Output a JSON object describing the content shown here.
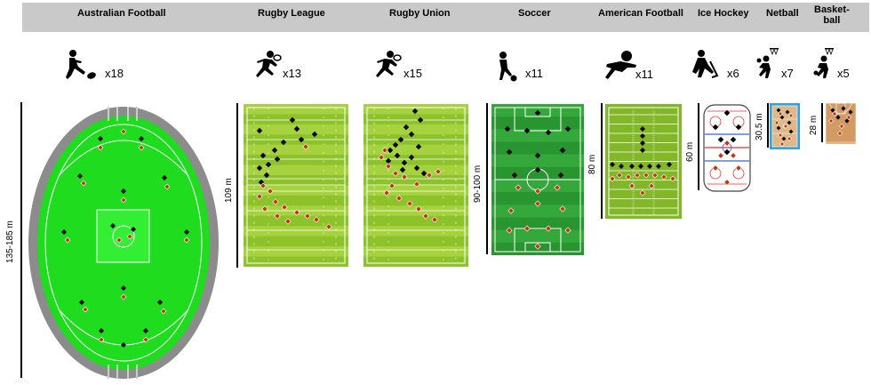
{
  "sports": [
    {
      "id": "australian-football",
      "title": "Australian Football",
      "players": "x18",
      "length": "135-185 m"
    },
    {
      "id": "rugby-league",
      "title": "Rugby League",
      "players": "x13",
      "length": "109 m"
    },
    {
      "id": "rugby-union",
      "title": "Rugby Union",
      "players": "x15",
      "length": ""
    },
    {
      "id": "soccer",
      "title": "Soccer",
      "players": "x11",
      "length": "90-100 m"
    },
    {
      "id": "american-football",
      "title": "American Football",
      "players": "x11",
      "length": "80 m"
    },
    {
      "id": "ice-hockey",
      "title": "Ice Hockey",
      "players": "x6",
      "length": "60 m"
    },
    {
      "id": "netball",
      "title": "Netball",
      "players": "x7",
      "length": "30.5 m"
    },
    {
      "id": "basketball",
      "title": "Basket-\nball",
      "players": "x5",
      "length": "28 m"
    }
  ],
  "colors": {
    "header": "#c9c9c9",
    "afl_grass": "#1fdc1f",
    "afl_rim": "#8c8c8c",
    "rugby_grass": "#9acd32",
    "soccer_grass": "#2e9e33",
    "gridiron_grass": "#82b827",
    "team_a": "#000000",
    "team_b": "#c0390f",
    "netball_court": "#deb887",
    "netball_border": "#3aa0d8"
  },
  "icons": [
    "kicking-player-icon",
    "running-player-icon",
    "soccer-player-icon",
    "tackling-player-icon",
    "hockey-player-icon",
    "netball-player-icon",
    "basketball-player-icon"
  ]
}
